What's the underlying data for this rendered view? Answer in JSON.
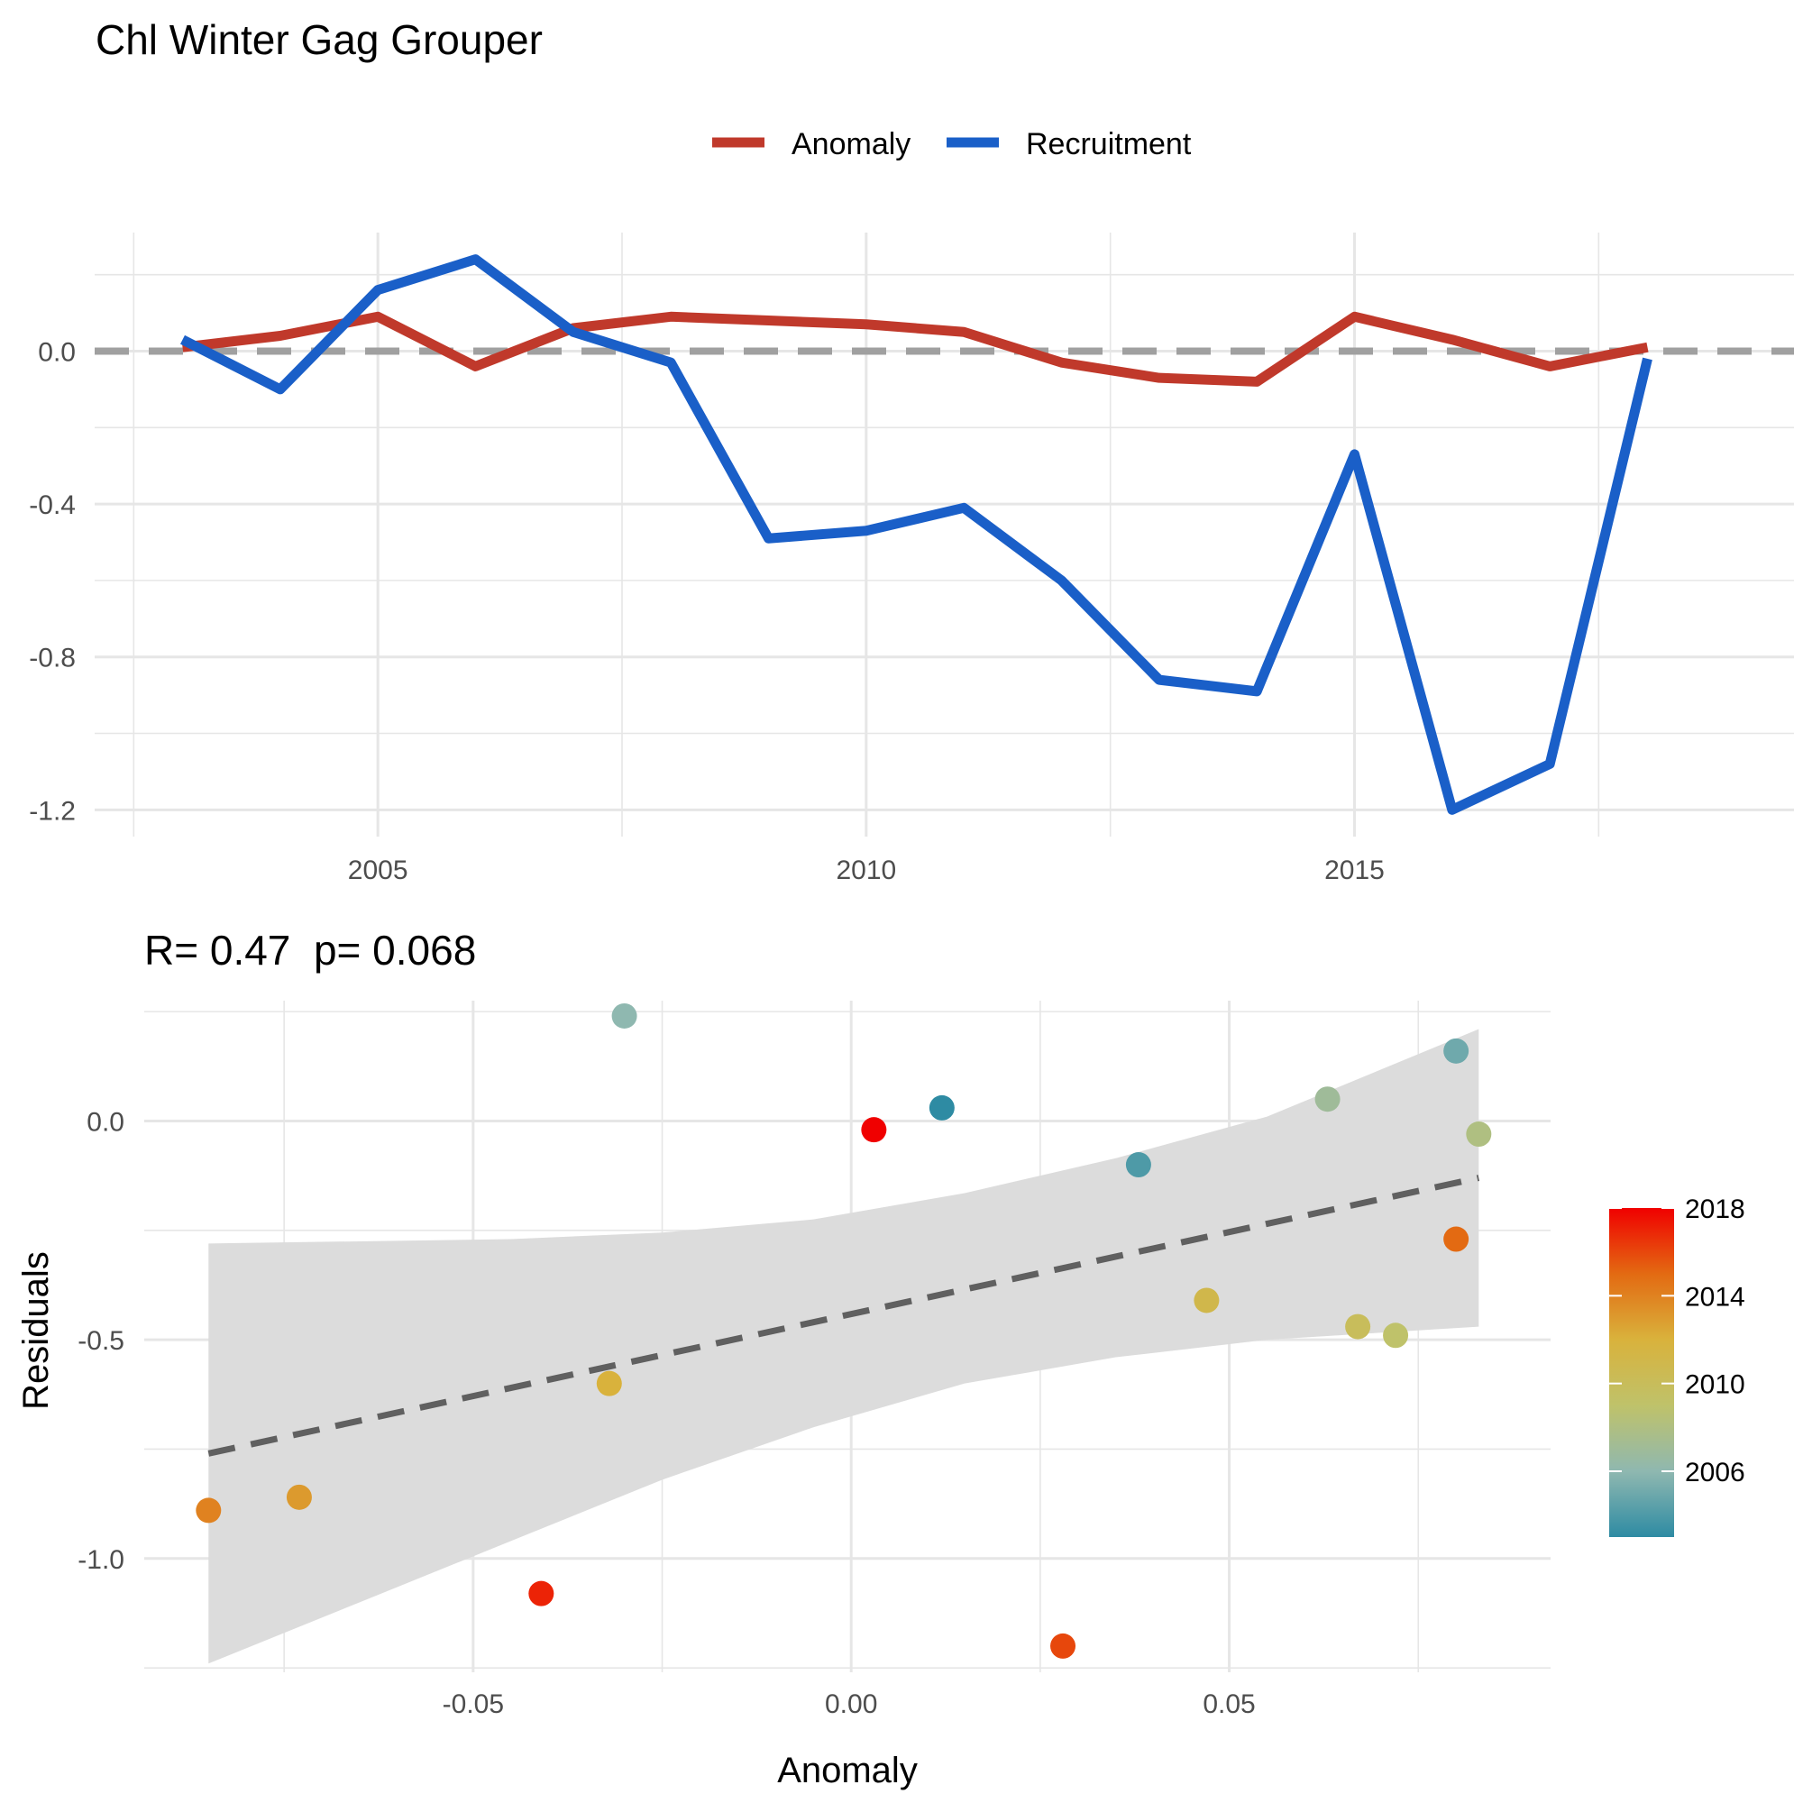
{
  "title": "Chl Winter Gag Grouper",
  "colors": {
    "anomaly": "#C0392B",
    "recruitment": "#1A5FC8",
    "zero_line": "#A0A0A0",
    "grid": "#E6E6E6",
    "ribbon": "#DCDCDC",
    "fit_line": "#606060"
  },
  "legend": {
    "items": [
      {
        "label": "Anomaly",
        "color": "#C0392B"
      },
      {
        "label": "Recruitment",
        "color": "#1A5FC8"
      }
    ]
  },
  "chart_data": [
    {
      "type": "line",
      "x": [
        2003,
        2004,
        2005,
        2006,
        2007,
        2008,
        2009,
        2010,
        2011,
        2012,
        2013,
        2014,
        2015,
        2016,
        2017,
        2018
      ],
      "series": [
        {
          "name": "Anomaly",
          "color": "#C0392B",
          "values": [
            0.01,
            0.04,
            0.09,
            -0.04,
            0.06,
            0.09,
            0.08,
            0.07,
            0.05,
            -0.03,
            -0.07,
            -0.08,
            0.09,
            0.03,
            -0.04,
            0.01
          ]
        },
        {
          "name": "Recruitment",
          "color": "#1A5FC8",
          "values": [
            0.03,
            -0.1,
            0.16,
            0.24,
            0.05,
            -0.03,
            -0.49,
            -0.47,
            -0.41,
            -0.6,
            -0.86,
            -0.89,
            -0.27,
            -1.2,
            -1.08,
            -0.02
          ]
        }
      ],
      "xlim": [
        2002.1,
        2019.5
      ],
      "ylim": [
        -1.27,
        0.31
      ],
      "x_ticks": [
        2005,
        2010,
        2015
      ],
      "x_tick_labels": [
        "2005",
        "2010",
        "2015"
      ],
      "y_ticks": [
        -1.2,
        -0.8,
        -0.4,
        0.0
      ],
      "y_tick_labels": [
        "-1.2",
        "-0.8",
        "-0.4",
        "0.0"
      ],
      "reference_line": 0,
      "legend_position": "top",
      "grid": true
    },
    {
      "type": "scatter",
      "annotation": "R= 0.47  p= 0.068",
      "xlabel": "Anomaly",
      "ylabel": "Residuals",
      "points": [
        {
          "year": 2003,
          "x": 0.012,
          "y": 0.03
        },
        {
          "year": 2004,
          "x": 0.038,
          "y": -0.1
        },
        {
          "year": 2005,
          "x": 0.08,
          "y": 0.16
        },
        {
          "year": 2006,
          "x": -0.03,
          "y": 0.24
        },
        {
          "year": 2007,
          "x": 0.063,
          "y": 0.05
        },
        {
          "year": 2008,
          "x": 0.083,
          "y": -0.03
        },
        {
          "year": 2009,
          "x": 0.072,
          "y": -0.49
        },
        {
          "year": 2010,
          "x": 0.067,
          "y": -0.47
        },
        {
          "year": 2011,
          "x": 0.047,
          "y": -0.41
        },
        {
          "year": 2012,
          "x": -0.032,
          "y": -0.6
        },
        {
          "year": 2013,
          "x": -0.073,
          "y": -0.86
        },
        {
          "year": 2014,
          "x": -0.085,
          "y": -0.89
        },
        {
          "year": 2015,
          "x": 0.08,
          "y": -0.27
        },
        {
          "year": 2016,
          "x": 0.028,
          "y": -1.2
        },
        {
          "year": 2017,
          "x": -0.041,
          "y": -1.08
        },
        {
          "year": 2018,
          "x": 0.003,
          "y": -0.02
        }
      ],
      "fit": {
        "x_start": -0.085,
        "y_start": -0.76,
        "x_end": 0.083,
        "y_end": -0.13
      },
      "confidence_band": {
        "x": [
          -0.085,
          -0.065,
          -0.045,
          -0.025,
          -0.005,
          0.015,
          0.035,
          0.055,
          0.083
        ],
        "upper": [
          -0.28,
          -0.275,
          -0.27,
          -0.255,
          -0.225,
          -0.165,
          -0.085,
          0.01,
          0.21
        ],
        "lower": [
          -1.24,
          -1.1,
          -0.96,
          -0.82,
          -0.7,
          -0.6,
          -0.54,
          -0.5,
          -0.47
        ]
      },
      "xlim": [
        -0.0935,
        0.0925
      ],
      "ylim": [
        -1.26,
        0.275
      ],
      "x_ticks": [
        -0.05,
        0.0,
        0.05
      ],
      "x_tick_labels": [
        "-0.05",
        "0.00",
        "0.05"
      ],
      "y_ticks": [
        -1.0,
        -0.5,
        0.0
      ],
      "y_tick_labels": [
        "-1.0",
        "-0.5",
        "0.0"
      ],
      "grid": true,
      "colorbar": {
        "title": "",
        "range": [
          2003,
          2018
        ],
        "ticks": [
          2006,
          2010,
          2014,
          2018
        ],
        "tick_labels": [
          "2006",
          "2010",
          "2014",
          "2018"
        ],
        "gradient_colors": [
          "#2E8BA3",
          "#8FB8B0",
          "#BFC26A",
          "#D9B23C",
          "#E36A12",
          "#F00000"
        ],
        "legend_position": "right"
      }
    }
  ]
}
